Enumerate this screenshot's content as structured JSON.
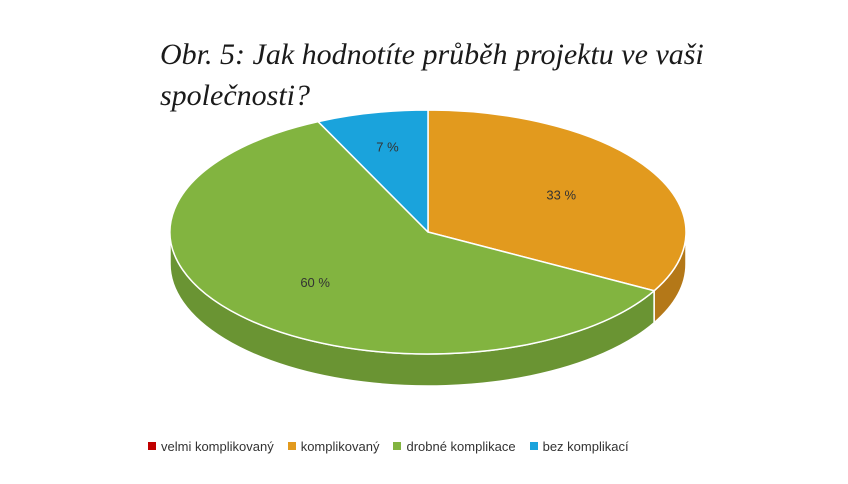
{
  "chart_data": {
    "type": "pie",
    "title": "Obr. 5: Jak hodnotíte průběh projektu ve vaši společnosti?",
    "categories": [
      "velmi komplikovaný",
      "komplikovaný",
      "drobné komplikace",
      "bez komplikací"
    ],
    "values": [
      0,
      33,
      60,
      7
    ],
    "data_labels": [
      "",
      "33 %",
      "60 %",
      "7 %"
    ],
    "colors": [
      "#c00000",
      "#e29a1e",
      "#82b440",
      "#1aa3dc"
    ],
    "side_colors": [
      "#8f0000",
      "#b47818",
      "#6a9433",
      "#1582b0"
    ],
    "legend_position": "bottom",
    "style": "3d"
  }
}
